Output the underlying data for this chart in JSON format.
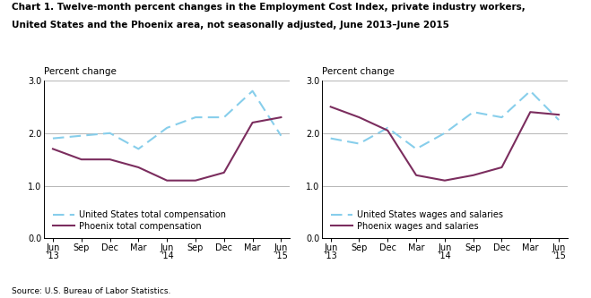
{
  "title_line1": "Chart 1. Twelve-month percent changes in the Employment Cost Index, private industry workers,",
  "title_line2": "United States and the Phoenix area, not seasonally adjusted, June 2013–June 2015",
  "source": "Source: U.S. Bureau of Labor Statistics.",
  "ylabel": "Percent change",
  "ylim": [
    0.0,
    3.0
  ],
  "yticks": [
    0.0,
    1.0,
    2.0,
    3.0
  ],
  "xtick_labels": [
    "Jun\n'13",
    "Sep",
    "Dec",
    "Mar",
    "Jun\n'14",
    "Sep",
    "Dec",
    "Mar",
    "Jun\n'15"
  ],
  "chart1": {
    "us_total_comp": [
      1.9,
      1.95,
      2.0,
      1.7,
      2.1,
      2.3,
      2.3,
      2.8,
      1.95
    ],
    "phx_total_comp": [
      1.7,
      1.5,
      1.5,
      1.35,
      1.1,
      1.1,
      1.25,
      2.2,
      2.3
    ],
    "legend1": "United States total compensation",
    "legend2": "Phoenix total compensation"
  },
  "chart2": {
    "us_wages": [
      1.9,
      1.8,
      2.1,
      1.7,
      2.0,
      2.4,
      2.3,
      2.8,
      2.25
    ],
    "phx_wages": [
      2.5,
      2.3,
      2.05,
      1.2,
      1.1,
      1.2,
      1.35,
      2.4,
      2.35
    ],
    "legend1": "United States wages and salaries",
    "legend2": "Phoenix wages and salaries"
  },
  "us_color": "#87CEEB",
  "phx_color": "#7B2D5E",
  "linewidth": 1.5,
  "grid_color": "#aaaaaa",
  "bg_color": "#FFFFFF",
  "title_fontsize": 7.5,
  "axis_label_fontsize": 7.5,
  "tick_fontsize": 7,
  "legend_fontsize": 7
}
